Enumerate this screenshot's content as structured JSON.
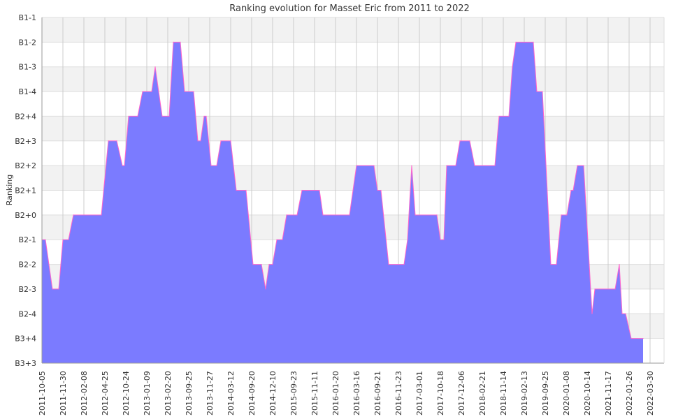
{
  "chart_data": {
    "type": "area",
    "title": "Ranking evolution for Masset Eric from 2011 to 2022",
    "xlabel": "",
    "ylabel": "Ranking",
    "x_tick_labels": [
      "2011-10-05",
      "2011-11-30",
      "2012-02-08",
      "2012-04-25",
      "2012-10-24",
      "2013-01-09",
      "2013-02-20",
      "2013-09-25",
      "2013-11-27",
      "2014-03-12",
      "2014-09-20",
      "2014-12-10",
      "2015-09-23",
      "2015-11-11",
      "2016-01-20",
      "2016-03-16",
      "2016-09-21",
      "2016-11-23",
      "2017-03-01",
      "2017-10-18",
      "2017-12-06",
      "2018-02-21",
      "2018-11-14",
      "2019-02-13",
      "2019-09-25",
      "2020-01-08",
      "2020-10-14",
      "2021-11-17",
      "2022-01-26",
      "2022-03-30"
    ],
    "y_categories": [
      "B3+3",
      "B3+4",
      "B2-4",
      "B2-3",
      "B2-2",
      "B2-1",
      "B2+0",
      "B2+1",
      "B2+2",
      "B2+3",
      "B2+4",
      "B1-4",
      "B1-3",
      "B1-2",
      "B1-1"
    ],
    "grid": true,
    "fill_color": "#7b7bff",
    "line_color": "#ff66cc",
    "series": [
      {
        "points": [
          {
            "x": 0,
            "y": "B2-1"
          },
          {
            "x": 5,
            "y": "B2-1"
          },
          {
            "x": 15,
            "y": "B2-3"
          },
          {
            "x": 24,
            "y": "B2-3"
          },
          {
            "x": 30,
            "y": "B2-1"
          },
          {
            "x": 38,
            "y": "B2-1"
          },
          {
            "x": 45,
            "y": "B2+0"
          },
          {
            "x": 85,
            "y": "B2+0"
          },
          {
            "x": 95,
            "y": "B2+3"
          },
          {
            "x": 107,
            "y": "B2+3"
          },
          {
            "x": 115,
            "y": "B2+2"
          },
          {
            "x": 118,
            "y": "B2+2"
          },
          {
            "x": 124,
            "y": "B2+4"
          },
          {
            "x": 137,
            "y": "B2+4"
          },
          {
            "x": 144,
            "y": "B1-4"
          },
          {
            "x": 157,
            "y": "B1-4"
          },
          {
            "x": 162,
            "y": "B1-3"
          },
          {
            "x": 172,
            "y": "B2+4"
          },
          {
            "x": 182,
            "y": "B2+4"
          },
          {
            "x": 188,
            "y": "B1-2"
          },
          {
            "x": 198,
            "y": "B1-2"
          },
          {
            "x": 204,
            "y": "B1-4"
          },
          {
            "x": 217,
            "y": "B1-4"
          },
          {
            "x": 223,
            "y": "B2+3"
          },
          {
            "x": 227,
            "y": "B2+3"
          },
          {
            "x": 232,
            "y": "B2+4"
          },
          {
            "x": 235,
            "y": "B2+4"
          },
          {
            "x": 242,
            "y": "B2+2"
          },
          {
            "x": 250,
            "y": "B2+2"
          },
          {
            "x": 256,
            "y": "B2+3"
          },
          {
            "x": 270,
            "y": "B2+3"
          },
          {
            "x": 278,
            "y": "B2+1"
          },
          {
            "x": 292,
            "y": "B2+1"
          },
          {
            "x": 302,
            "y": "B2-2"
          },
          {
            "x": 314,
            "y": "B2-2"
          },
          {
            "x": 320,
            "y": "B2-3"
          },
          {
            "x": 325,
            "y": "B2-2"
          },
          {
            "x": 330,
            "y": "B2-2"
          },
          {
            "x": 336,
            "y": "B2-1"
          },
          {
            "x": 344,
            "y": "B2-1"
          },
          {
            "x": 350,
            "y": "B2+0"
          },
          {
            "x": 365,
            "y": "B2+0"
          },
          {
            "x": 372,
            "y": "B2+1"
          },
          {
            "x": 397,
            "y": "B2+1"
          },
          {
            "x": 402,
            "y": "B2+0"
          },
          {
            "x": 440,
            "y": "B2+0"
          },
          {
            "x": 450,
            "y": "B2+2"
          },
          {
            "x": 475,
            "y": "B2+2"
          },
          {
            "x": 480,
            "y": "B2+1"
          },
          {
            "x": 485,
            "y": "B2+1"
          },
          {
            "x": 496,
            "y": "B2-2"
          },
          {
            "x": 518,
            "y": "B2-2"
          },
          {
            "x": 523,
            "y": "B2-1"
          },
          {
            "x": 529,
            "y": "B2+2"
          },
          {
            "x": 534,
            "y": "B2+0"
          },
          {
            "x": 565,
            "y": "B2+0"
          },
          {
            "x": 570,
            "y": "B2-1"
          },
          {
            "x": 575,
            "y": "B2-1"
          },
          {
            "x": 579,
            "y": "B2+2"
          },
          {
            "x": 592,
            "y": "B2+2"
          },
          {
            "x": 598,
            "y": "B2+3"
          },
          {
            "x": 612,
            "y": "B2+3"
          },
          {
            "x": 619,
            "y": "B2+2"
          },
          {
            "x": 648,
            "y": "B2+2"
          },
          {
            "x": 654,
            "y": "B2+4"
          },
          {
            "x": 668,
            "y": "B2+4"
          },
          {
            "x": 673,
            "y": "B1-3"
          },
          {
            "x": 678,
            "y": "B1-2"
          },
          {
            "x": 703,
            "y": "B1-2"
          },
          {
            "x": 708,
            "y": "B1-4"
          },
          {
            "x": 716,
            "y": "B1-4"
          },
          {
            "x": 728,
            "y": "B2-2"
          },
          {
            "x": 736,
            "y": "B2-2"
          },
          {
            "x": 743,
            "y": "B2+0"
          },
          {
            "x": 751,
            "y": "B2+0"
          },
          {
            "x": 757,
            "y": "B2+1"
          },
          {
            "x": 760,
            "y": "B2+1"
          },
          {
            "x": 766,
            "y": "B2+2"
          },
          {
            "x": 775,
            "y": "B2+2"
          },
          {
            "x": 787,
            "y": "B2-4"
          },
          {
            "x": 791,
            "y": "B2-3"
          },
          {
            "x": 820,
            "y": "B2-3"
          },
          {
            "x": 826,
            "y": "B2-2"
          },
          {
            "x": 830,
            "y": "B2-4"
          },
          {
            "x": 835,
            "y": "B2-4"
          },
          {
            "x": 843,
            "y": "B3+4"
          },
          {
            "x": 860,
            "y": "B3+4"
          }
        ]
      }
    ]
  }
}
